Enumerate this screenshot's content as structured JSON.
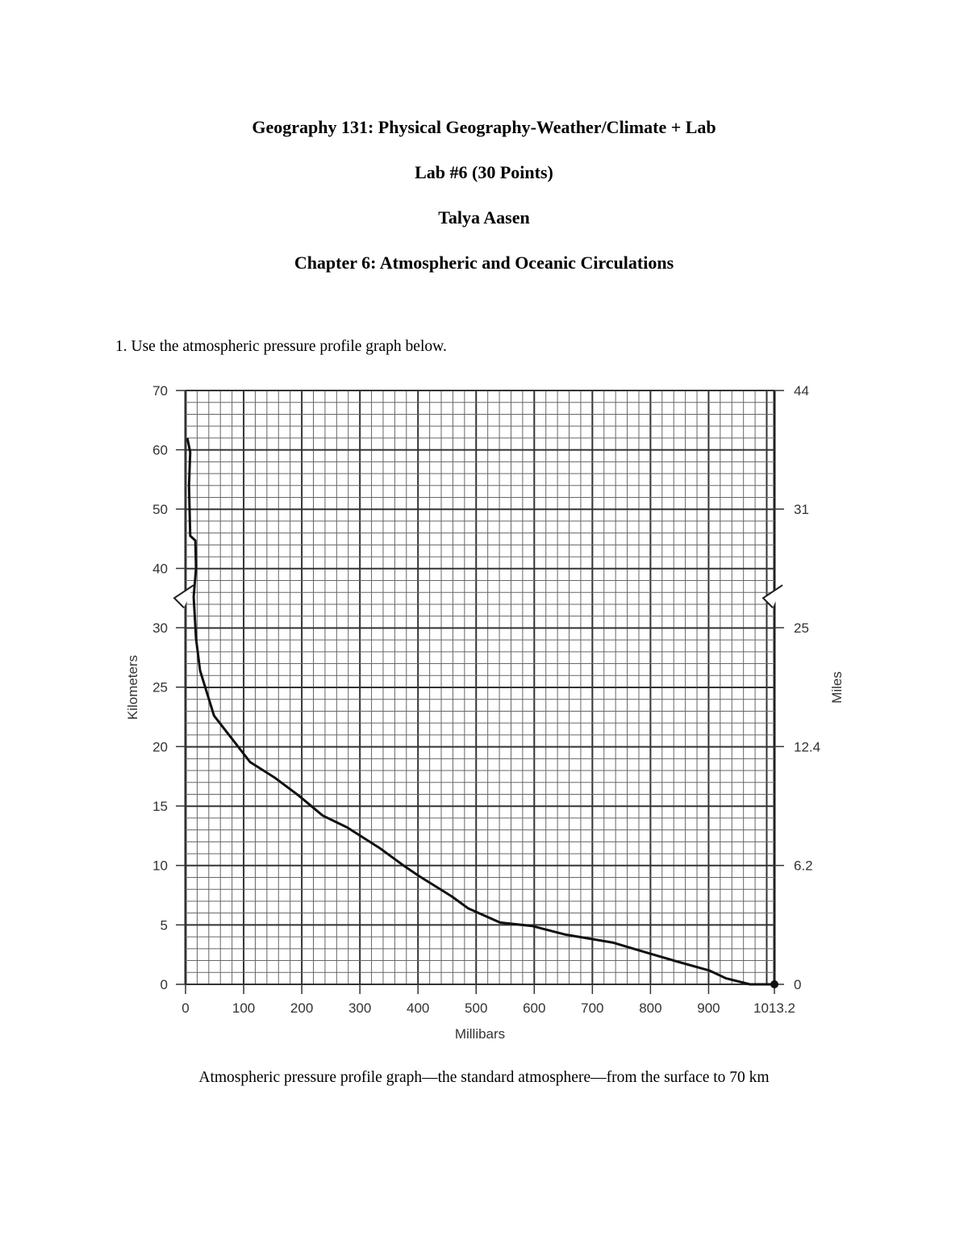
{
  "header": {
    "course": "Geography 131: Physical Geography-Weather/Climate + Lab",
    "lab": "Lab #6 (30 Points)",
    "student": "Talya Aasen",
    "chapter": "Chapter 6: Atmospheric and Oceanic Circulations"
  },
  "question": "1. Use the atmospheric pressure profile graph below.",
  "caption": "Atmospheric pressure profile graph—the standard atmosphere—from the surface to 70 km",
  "chart_data": {
    "type": "line",
    "xlabel": "Millibars",
    "ylabel": "Kilometers",
    "y2label": "Miles",
    "xlim": [
      0,
      1013.2
    ],
    "ylim": [
      0,
      70
    ],
    "y_axis_break_km": 35,
    "grid": true,
    "x_ticks": [
      "0",
      "100",
      "200",
      "300",
      "400",
      "500",
      "600",
      "700",
      "800",
      "900",
      "1013.2"
    ],
    "x_tick_values": [
      0,
      100,
      200,
      300,
      400,
      500,
      600,
      700,
      800,
      900,
      1013.2
    ],
    "y_ticks": [
      "0",
      "5",
      "10",
      "15",
      "20",
      "25",
      "30",
      "40",
      "50",
      "60",
      "70"
    ],
    "y_tick_values": [
      0,
      5,
      10,
      15,
      20,
      25,
      30,
      40,
      50,
      60,
      70
    ],
    "y2_ticks": [
      "0",
      "6.2",
      "12.4",
      "25",
      "31",
      "44"
    ],
    "y2_tick_positions_km": [
      0,
      10,
      20,
      30,
      50,
      70
    ],
    "series": [
      {
        "points_mb_km": [
          [
            1013.2,
            0
          ],
          [
            971,
            0
          ],
          [
            930,
            0.5
          ],
          [
            902,
            1.15
          ],
          [
            847,
            1.9
          ],
          [
            791,
            2.7
          ],
          [
            736,
            3.5
          ],
          [
            652,
            4.2
          ],
          [
            597,
            4.9
          ],
          [
            541,
            5.2
          ],
          [
            486,
            6.4
          ],
          [
            458,
            7.4
          ],
          [
            402,
            9.1
          ],
          [
            375,
            10
          ],
          [
            333,
            11.5
          ],
          [
            278,
            13.2
          ],
          [
            236,
            14.2
          ],
          [
            194,
            15.9
          ],
          [
            153,
            17.4
          ],
          [
            111,
            18.7
          ],
          [
            76,
            20.9
          ],
          [
            49,
            22.6
          ],
          [
            25,
            26.4
          ],
          [
            18,
            29.1
          ],
          [
            14,
            35.2
          ],
          [
            18,
            40
          ],
          [
            17,
            44.7
          ],
          [
            8,
            45.5
          ],
          [
            6,
            54
          ],
          [
            8,
            59.6
          ],
          [
            3,
            62
          ]
        ]
      }
    ],
    "colors": {
      "line": "#111111",
      "grid_minor": "#555555",
      "grid_major": "#333333",
      "text": "#333333"
    }
  }
}
